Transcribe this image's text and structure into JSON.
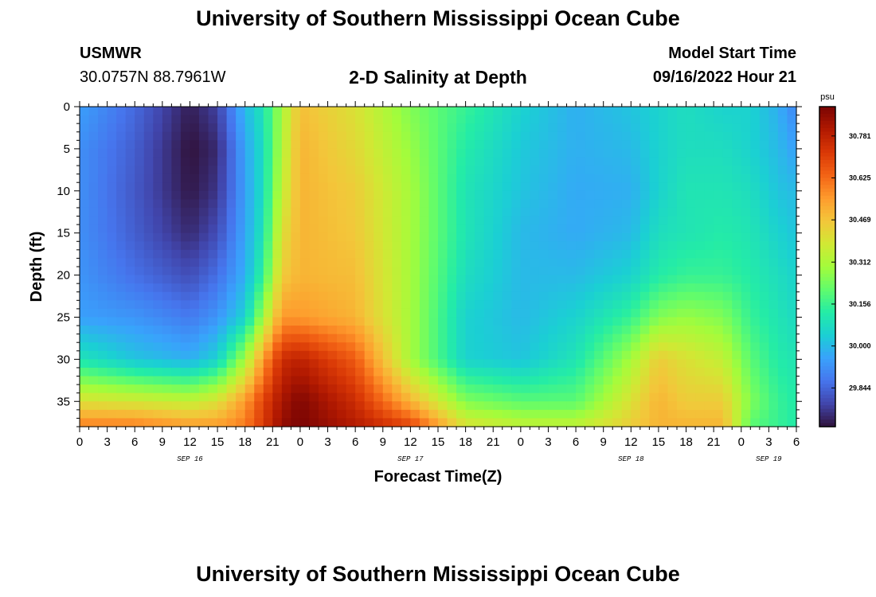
{
  "header": {
    "title": "University of Southern Mississippi Ocean Cube",
    "station": "USMWR",
    "coords": "30.0757N  88.7961W",
    "chart_title": "2-D Salinity at Depth",
    "start_label": "Model Start Time",
    "start_value": "09/16/2022 Hour 21"
  },
  "footer": {
    "title": "University of Southern Mississippi Ocean Cube"
  },
  "colors": {
    "colormap": [
      "#30123b",
      "#4145ab",
      "#4675ed",
      "#39a2fc",
      "#1bcfd4",
      "#24eca6",
      "#61fc6c",
      "#a4fc3b",
      "#d1e834",
      "#f3c63a",
      "#fe9b2d",
      "#f36315",
      "#d93806",
      "#b11901",
      "#7a0403"
    ]
  },
  "chart_data": {
    "type": "heatmap",
    "title": "2-D Salinity at Depth",
    "xlabel": "Forecast Time(Z)",
    "ylabel": "Depth (ft)",
    "x_ticks": [
      "0",
      "3",
      "6",
      "9",
      "12",
      "15",
      "18",
      "21",
      "0",
      "3",
      "6",
      "9",
      "12",
      "15",
      "18",
      "21",
      "0",
      "3",
      "6",
      "9",
      "12",
      "15",
      "18",
      "21",
      "0",
      "3",
      "6"
    ],
    "x_range_hours": [
      0,
      78
    ],
    "date_labels": [
      {
        "label": "SEP 16",
        "hour": 12
      },
      {
        "label": "SEP 17",
        "hour": 36
      },
      {
        "label": "SEP 18",
        "hour": 60
      },
      {
        "label": "SEP 19",
        "hour": 75
      }
    ],
    "y_ticks": [
      0,
      5,
      10,
      15,
      20,
      25,
      30,
      35
    ],
    "y_range": [
      0,
      38
    ],
    "colorbar": {
      "unit": "psu",
      "ticks": [
        "30.781",
        "30.625",
        "30.469",
        "30.312",
        "30.156",
        "30.000",
        "29.844"
      ],
      "min": 29.7,
      "max": 30.89
    },
    "depth_profiles": {
      "depths": [
        0,
        5,
        10,
        15,
        20,
        25,
        30,
        35,
        38
      ],
      "profiles": [
        {
          "hour": 0,
          "values": [
            29.95,
            29.92,
            29.92,
            29.92,
            29.93,
            29.95,
            30.1,
            30.4,
            30.6
          ]
        },
        {
          "hour": 6,
          "values": [
            29.85,
            29.83,
            29.82,
            29.83,
            29.86,
            29.93,
            30.02,
            30.38,
            30.6
          ]
        },
        {
          "hour": 12,
          "values": [
            29.72,
            29.7,
            29.71,
            29.74,
            29.8,
            29.88,
            29.98,
            30.35,
            30.55
          ]
        },
        {
          "hour": 15,
          "values": [
            29.78,
            29.74,
            29.76,
            29.8,
            29.86,
            29.93,
            30.05,
            30.4,
            30.55
          ]
        },
        {
          "hour": 18,
          "values": [
            30.0,
            29.96,
            29.95,
            29.96,
            29.98,
            30.05,
            30.3,
            30.55,
            30.6
          ]
        },
        {
          "hour": 20,
          "values": [
            30.1,
            30.08,
            30.08,
            30.1,
            30.15,
            30.3,
            30.55,
            30.7,
            30.72
          ]
        },
        {
          "hour": 22,
          "values": [
            30.3,
            30.32,
            30.35,
            30.4,
            30.45,
            30.55,
            30.75,
            30.82,
            30.85
          ]
        },
        {
          "hour": 24,
          "values": [
            30.48,
            30.5,
            30.5,
            30.5,
            30.5,
            30.55,
            30.78,
            30.88,
            30.89
          ]
        },
        {
          "hour": 30,
          "values": [
            30.4,
            30.42,
            30.45,
            30.46,
            30.48,
            30.5,
            30.65,
            30.75,
            30.8
          ]
        },
        {
          "hour": 36,
          "values": [
            30.25,
            30.28,
            30.3,
            30.3,
            30.3,
            30.3,
            30.3,
            30.5,
            30.7
          ]
        },
        {
          "hour": 42,
          "values": [
            30.15,
            30.12,
            30.1,
            30.1,
            30.08,
            30.05,
            30.05,
            30.25,
            30.4
          ]
        },
        {
          "hour": 48,
          "values": [
            30.05,
            30.03,
            30.02,
            30.0,
            30.0,
            30.0,
            30.02,
            30.2,
            30.35
          ]
        },
        {
          "hour": 54,
          "values": [
            29.98,
            29.98,
            29.97,
            29.97,
            30.0,
            30.05,
            30.1,
            30.2,
            30.35
          ]
        },
        {
          "hour": 60,
          "values": [
            30.02,
            30.0,
            29.98,
            30.0,
            30.05,
            30.15,
            30.3,
            30.4,
            30.45
          ]
        },
        {
          "hour": 63,
          "values": [
            30.05,
            30.05,
            30.05,
            30.08,
            30.12,
            30.25,
            30.45,
            30.5,
            30.5
          ]
        },
        {
          "hour": 66,
          "values": [
            30.08,
            30.08,
            30.1,
            30.1,
            30.15,
            30.28,
            30.4,
            30.45,
            30.5
          ]
        },
        {
          "hour": 70,
          "values": [
            30.05,
            30.08,
            30.1,
            30.12,
            30.15,
            30.25,
            30.35,
            30.45,
            30.5
          ]
        },
        {
          "hour": 73,
          "values": [
            30.05,
            30.05,
            30.08,
            30.1,
            30.12,
            30.15,
            30.2,
            30.25,
            30.2
          ]
        },
        {
          "hour": 76,
          "values": [
            29.98,
            30.0,
            30.02,
            30.05,
            30.08,
            30.1,
            30.12,
            30.15,
            30.15
          ]
        },
        {
          "hour": 78,
          "values": [
            29.9,
            29.95,
            30.0,
            30.02,
            30.05,
            30.07,
            30.1,
            30.12,
            30.12
          ]
        }
      ]
    }
  }
}
